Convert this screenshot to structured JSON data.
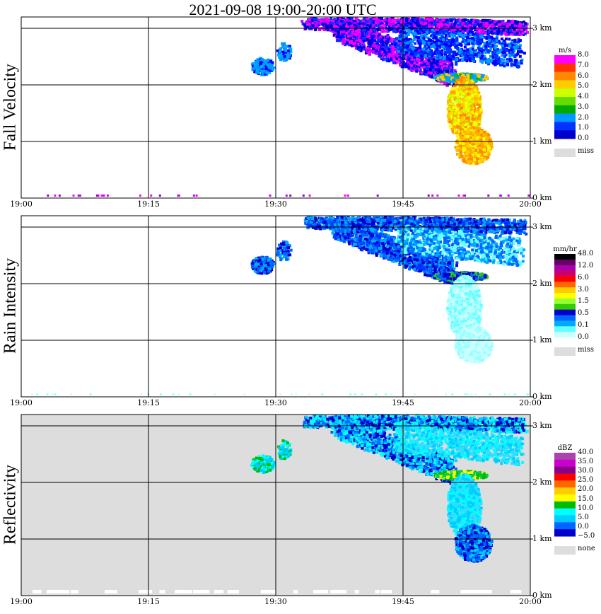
{
  "title": "2021-09-08   19:00-20:00 UTC",
  "x_ticks": [
    "19:00",
    "19:15",
    "19:30",
    "19:45",
    "20:00"
  ],
  "y_ticks": [
    "0 km",
    "1 km",
    "2 km",
    "3 km"
  ],
  "chart_data": [
    {
      "type": "heatmap",
      "title": "Fall Velocity",
      "xlim": [
        "19:00",
        "20:00"
      ],
      "ylim": [
        0,
        3.2
      ],
      "grid": true,
      "colorbar": {
        "unit": "m/s",
        "labels": [
          "8.0",
          "7.0",
          "6.0",
          "5.0",
          "4.0",
          "3.0",
          "2.0",
          "1.0",
          "0.0",
          "miss"
        ],
        "colors": [
          "#ff00ff",
          "#ff3300",
          "#ff8800",
          "#ffcc00",
          "#ccff00",
          "#66dd00",
          "#00aa00",
          "#0099ff",
          "#0033ff",
          "#0000cc"
        ],
        "miss_color": "#dddddd"
      }
    },
    {
      "type": "heatmap",
      "title": "Rain Intensity",
      "xlim": [
        "19:00",
        "20:00"
      ],
      "ylim": [
        0,
        3.2
      ],
      "grid": true,
      "colorbar": {
        "unit": "mm/hr",
        "labels": [
          "48.0",
          "12.0",
          "6.0",
          "3.0",
          "1.5",
          "0.5",
          "0.1",
          "0.0",
          "miss"
        ],
        "colors": [
          "#000000",
          "#660066",
          "#aa00aa",
          "#cc0066",
          "#ff0000",
          "#ff6600",
          "#ffcc00",
          "#ffff00",
          "#99ff33",
          "#33cc00",
          "#0000cc",
          "#0066ff",
          "#00aaff",
          "#66ffff",
          "#ccffff"
        ],
        "miss_color": "#dddddd"
      }
    },
    {
      "type": "heatmap",
      "title": "Reflectivity",
      "xlim": [
        "19:00",
        "20:00"
      ],
      "ylim": [
        0,
        3.2
      ],
      "grid": true,
      "colorbar": {
        "unit": "dBZ",
        "labels": [
          "40.0",
          "35.0",
          "30.0",
          "25.0",
          "20.0",
          "15.0",
          "10.0",
          "5.0",
          "0.0",
          "−5.0",
          "none"
        ],
        "colors": [
          "#aa44aa",
          "#cc00cc",
          "#880088",
          "#ff0000",
          "#ff6600",
          "#ffcc00",
          "#ffff00",
          "#00bb00",
          "#00ffff",
          "#00ccff",
          "#0066ff",
          "#0000cc"
        ],
        "miss_color": "#dddddd"
      }
    }
  ]
}
